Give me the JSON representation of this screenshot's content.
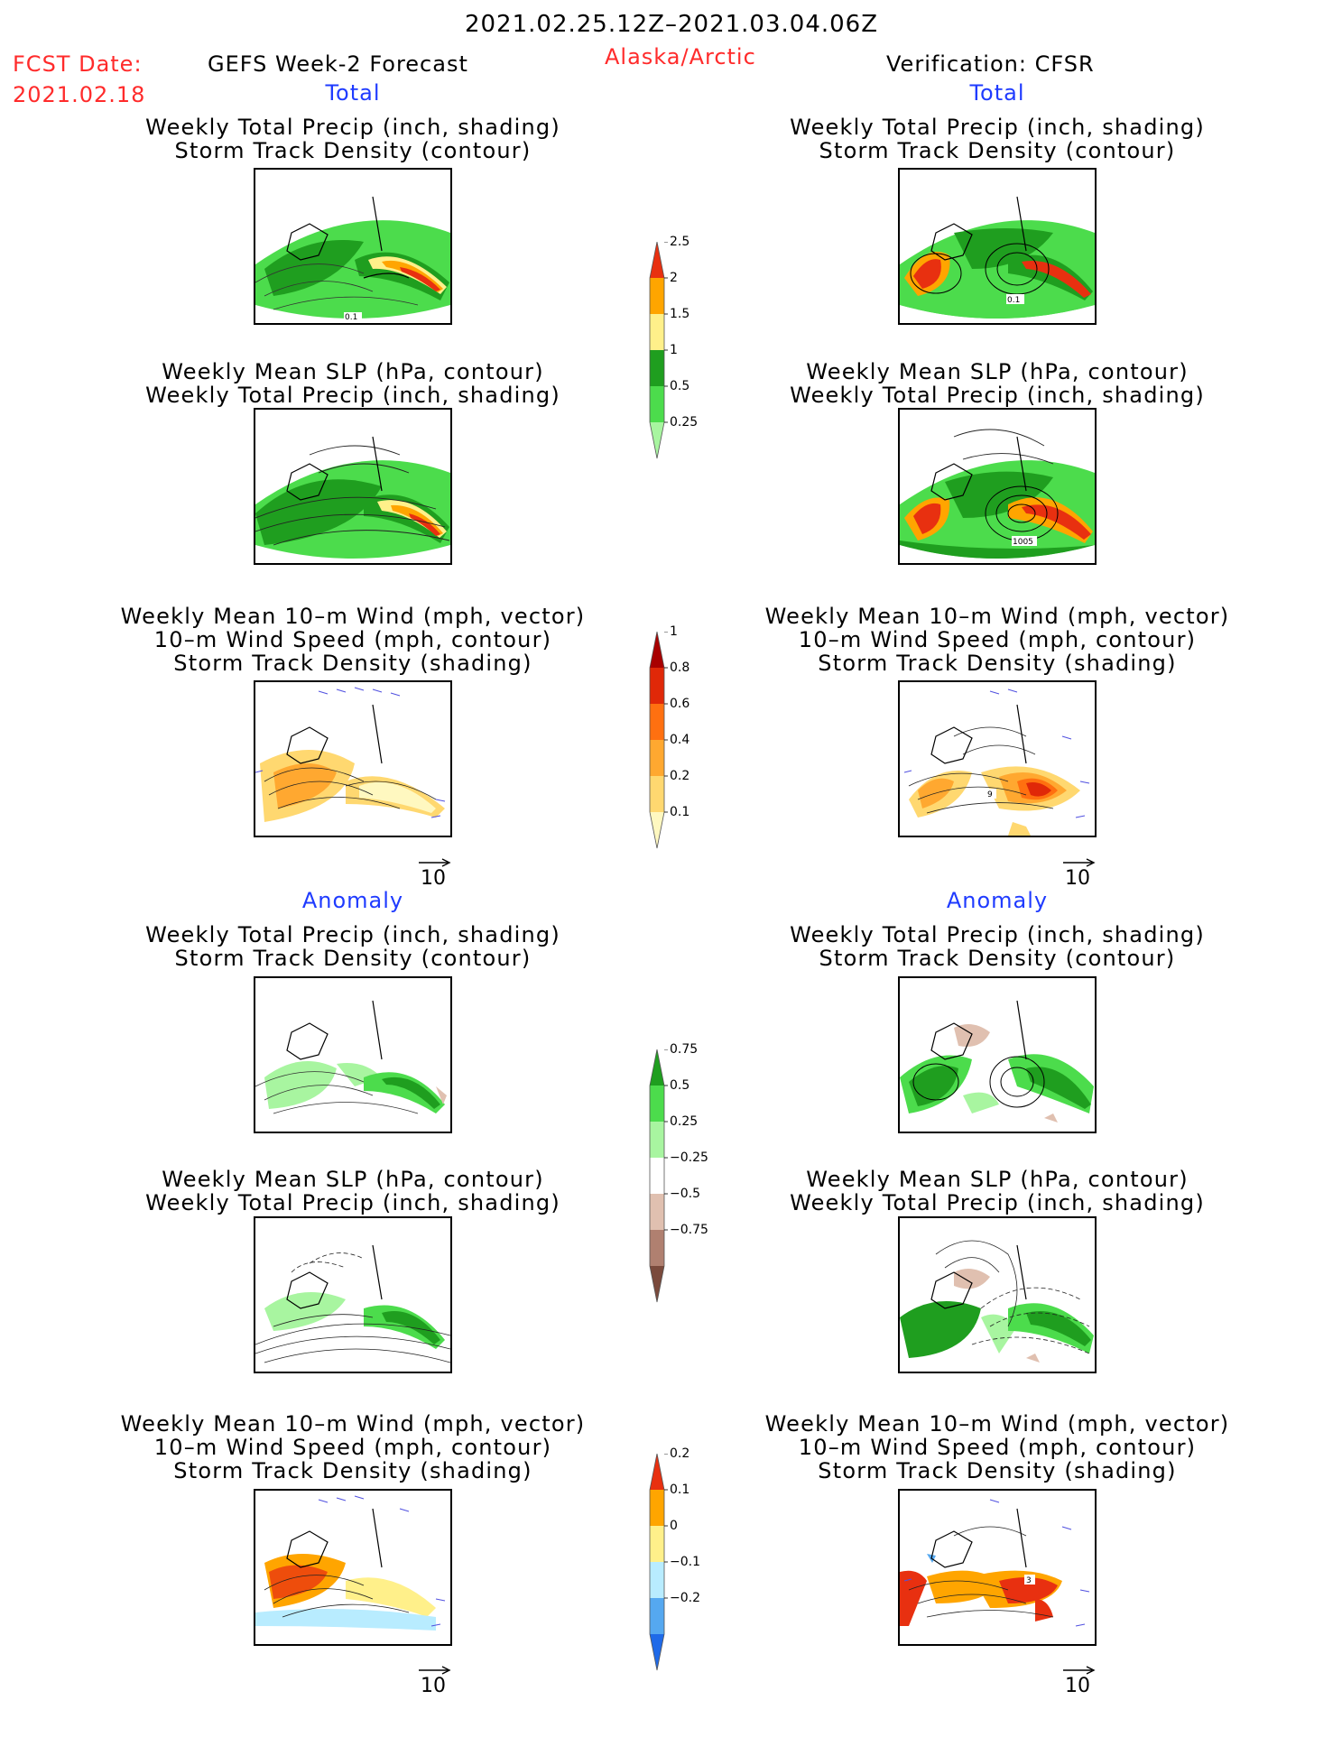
{
  "header": {
    "date_range": "2021.02.25.12Z–2021.03.04.06Z",
    "fcst_date_label": "FCST Date:",
    "fcst_date_value": "2021.02.18",
    "left_title": "GEFS Week-2 Forecast",
    "region": "Alaska/Arctic",
    "right_title": "Verification: CFSR"
  },
  "sections": {
    "total": "Total",
    "anomaly": "Anomaly"
  },
  "panel_titles": {
    "precip_storm": [
      "Weekly Total Precip (inch, shading)",
      "Storm Track Density (contour)"
    ],
    "slp_precip": [
      "Weekly Mean SLP (hPa, contour)",
      "Weekly Total Precip (inch, shading)"
    ],
    "wind_storm": [
      "Weekly Mean 10–m Wind (mph, vector)",
      "10–m Wind Speed (mph, contour)",
      "Storm Track Density (shading)"
    ]
  },
  "vector_ref": {
    "label": "10"
  },
  "contour_labels": {
    "gefs_total_precip": "0.1",
    "cfsr_total_precip": "0.1",
    "cfsr_total_slp": "1005",
    "cfsr_total_wind": "9",
    "cfsr_anom_wind": "3"
  },
  "colorbars": {
    "total_precip": {
      "colors": [
        "#a8f5a0",
        "#4cdc4c",
        "#1f9e1f",
        "#fff08a",
        "#ffa500",
        "#e83010"
      ],
      "labels": [
        "0.25",
        "0.5",
        "1",
        "1.5",
        "2",
        "2.5"
      ]
    },
    "storm_density": {
      "colors": [
        "#fff8c0",
        "#ffd870",
        "#ffa830",
        "#ff7010",
        "#e02808",
        "#a80000"
      ],
      "labels": [
        "0.1",
        "0.2",
        "0.4",
        "0.6",
        "0.8",
        "1"
      ]
    },
    "precip_anom": {
      "colors": [
        "#7a4a3c",
        "#b08070",
        "#e0c0b0",
        "#ffffff",
        "#a8f5a0",
        "#4cdc4c",
        "#1f9e1f"
      ],
      "labels": [
        "−0.75",
        "−0.5",
        "−0.25",
        "0.25",
        "0.5",
        "0.75"
      ]
    },
    "storm_anom": {
      "colors": [
        "#1f6ae8",
        "#55a8f0",
        "#b8ecff",
        "#fff08a",
        "#ffa500",
        "#e83010"
      ],
      "labels": [
        "−0.2",
        "−0.1",
        "0",
        "0.1",
        "0.2"
      ]
    }
  }
}
